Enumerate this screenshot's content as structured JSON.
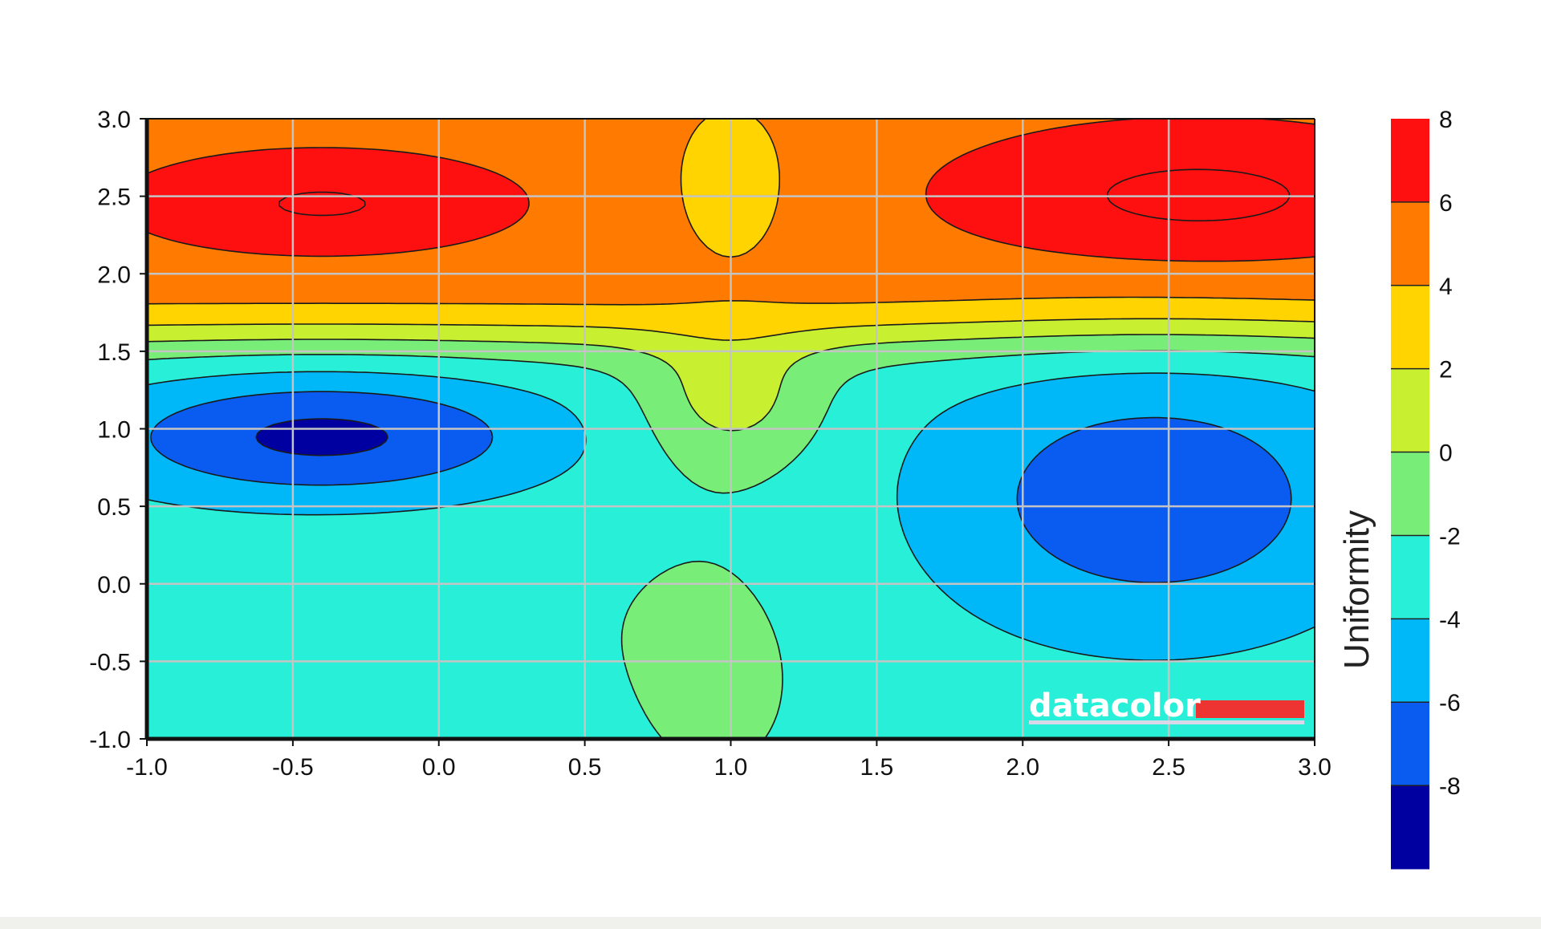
{
  "chart_data": {
    "type": "contour",
    "xlim": [
      -1.0,
      3.0
    ],
    "ylim": [
      -1.0,
      3.0
    ],
    "x_ticks": [
      "-1.0",
      "-0.5",
      "0.0",
      "0.5",
      "1.0",
      "1.5",
      "2.0",
      "2.5",
      "3.0"
    ],
    "y_ticks": [
      "-1.0",
      "-0.5",
      "0.0",
      "0.5",
      "1.0",
      "1.5",
      "2.0",
      "2.5",
      "3.0"
    ],
    "grid": true,
    "colorbar": {
      "label": "Uniformity",
      "levels": [
        -8,
        -6,
        -4,
        -2,
        0,
        2,
        4,
        6,
        8
      ],
      "tick_labels": [
        "8",
        "6",
        "4",
        "2",
        "0",
        "-2",
        "-4",
        "-6",
        "-8"
      ],
      "colors": [
        "#0000a0",
        "#0a5cf0",
        "#00b8f8",
        "#28f0d8",
        "#78ee78",
        "#c8f030",
        "#ffd400",
        "#ff7a00",
        "#ff1010"
      ],
      "position": "right"
    },
    "features": [
      {
        "kind": "max",
        "x": -0.4,
        "y": 2.45,
        "value": 7
      },
      {
        "kind": "max",
        "x": 2.5,
        "y": 2.4,
        "value": 7
      },
      {
        "kind": "min",
        "x": -0.4,
        "y": 0.9,
        "value": -9
      },
      {
        "kind": "min",
        "x": 2.4,
        "y": 0.7,
        "value": -8
      },
      {
        "kind": "saddle",
        "x": 1.0,
        "y": 1.5,
        "value": 1
      }
    ]
  },
  "watermark": {
    "text": "datacolor"
  }
}
